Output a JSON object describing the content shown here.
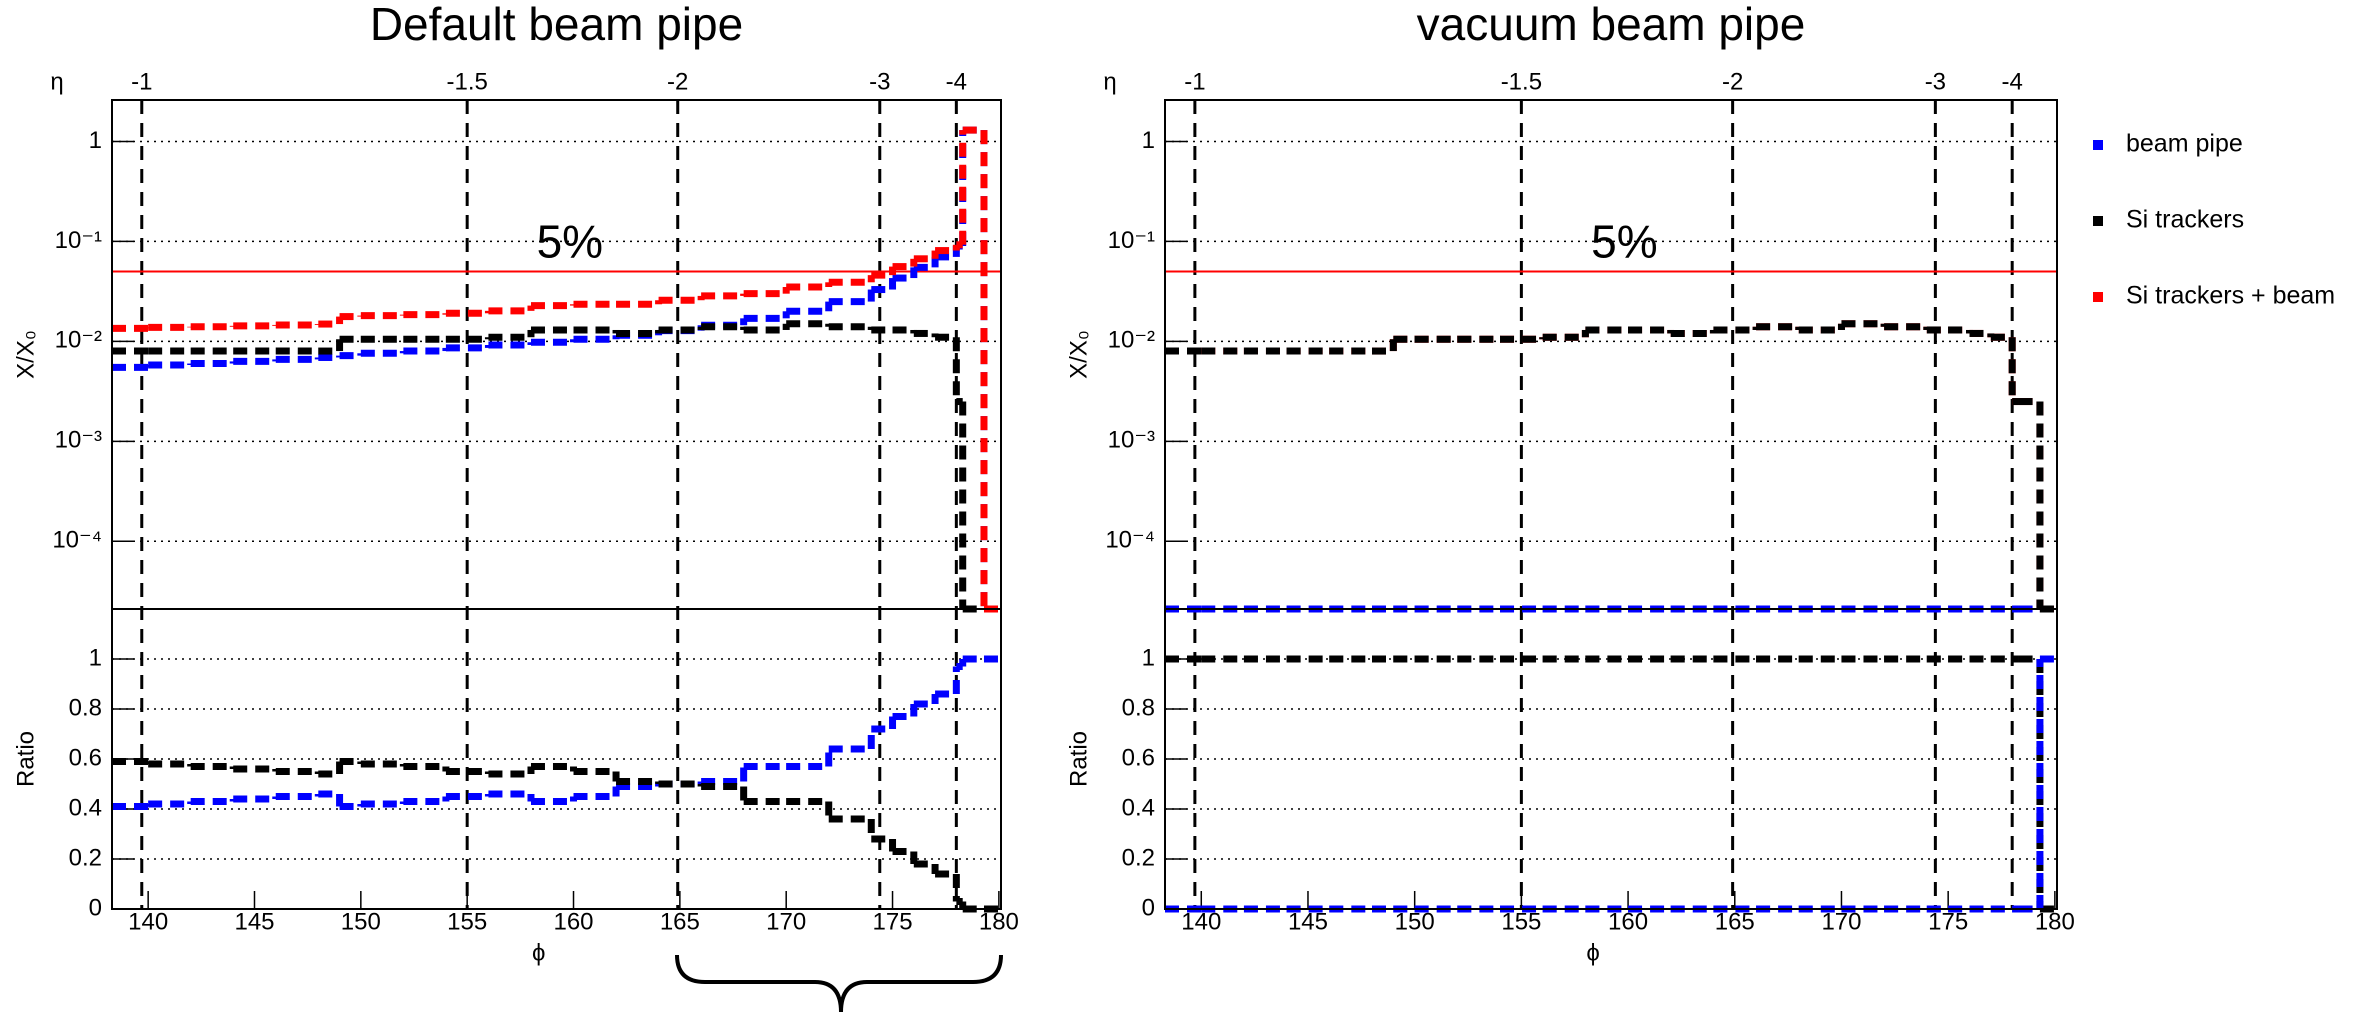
{
  "chart_data": [
    {
      "type": "step",
      "title": "Default beam pipe",
      "legend": "right",
      "eta_label": "η",
      "eta_ticks": [
        {
          "value": 139.7,
          "label": "-1"
        },
        {
          "value": 155,
          "label": "-1.5"
        },
        {
          "value": 164.9,
          "label": "-2"
        },
        {
          "value": 174.4,
          "label": "-3"
        },
        {
          "value": 178,
          "label": "-4"
        }
      ],
      "xlabel": "ϕ",
      "xlim": [
        138.3,
        180.1
      ],
      "xticks": [
        140,
        145,
        150,
        155,
        160,
        165,
        170,
        175,
        180
      ],
      "bins": [
        138.3,
        140,
        142,
        144,
        146,
        148,
        149,
        150,
        152,
        154,
        156,
        158,
        160,
        162,
        164,
        166,
        168,
        170,
        172,
        174,
        175,
        176,
        177,
        178,
        178.3,
        179.3,
        180.1
      ],
      "top": {
        "ylabel": "X/X₀",
        "log": true,
        "ylim": [
          2.1e-05,
          2.6
        ],
        "grid": true,
        "yticks": [
          {
            "value": 0.0001,
            "label": "10⁻⁴"
          },
          {
            "value": 0.001,
            "label": "10⁻³"
          },
          {
            "value": 0.01,
            "label": "10⁻²"
          },
          {
            "value": 0.1,
            "label": "10⁻¹"
          },
          1
        ],
        "reference_line": {
          "value": 0.05,
          "label": "5%",
          "color": "#ff0000"
        },
        "series": [
          {
            "name": "beam pipe",
            "color": "#0000ff",
            "values": [
              0.0055,
              0.0058,
              0.006,
              0.0063,
              0.0066,
              0.0069,
              0.0072,
              0.0076,
              0.008,
              0.0086,
              0.0092,
              0.0098,
              0.0105,
              0.0115,
              0.0128,
              0.0145,
              0.017,
              0.02,
              0.025,
              0.033,
              0.043,
              0.055,
              0.07,
              0.09,
              1.3,
              0
            ]
          },
          {
            "name": "Si trackers",
            "color": "#000000",
            "values": [
              0.008,
              0.008,
              0.008,
              0.008,
              0.008,
              0.008,
              0.0105,
              0.0105,
              0.0105,
              0.0105,
              0.011,
              0.013,
              0.013,
              0.012,
              0.013,
              0.014,
              0.013,
              0.015,
              0.014,
              0.013,
              0.013,
              0.012,
              0.011,
              0.0025,
              0,
              0
            ]
          },
          {
            "name": "Si trackers + beam",
            "color": "#ff0000",
            "values": [
              0.0135,
              0.0138,
              0.014,
              0.0143,
              0.0146,
              0.0149,
              0.0177,
              0.0181,
              0.0185,
              0.0191,
              0.0202,
              0.0228,
              0.0235,
              0.0235,
              0.0258,
              0.0285,
              0.03,
              0.035,
              0.039,
              0.046,
              0.056,
              0.067,
              0.081,
              0.0925,
              1.3,
              0
            ]
          }
        ]
      },
      "ratio": {
        "ylabel": "Ratio",
        "ylim": [
          0,
          1.2
        ],
        "yticks": [
          0,
          0.2,
          0.4,
          0.6,
          0.8,
          1
        ],
        "grid": true,
        "series": [
          {
            "color": "#0000ff",
            "values": [
              0.41,
              0.42,
              0.43,
              0.44,
              0.45,
              0.46,
              0.41,
              0.42,
              0.43,
              0.45,
              0.46,
              0.43,
              0.45,
              0.49,
              0.5,
              0.51,
              0.57,
              0.57,
              0.64,
              0.72,
              0.77,
              0.82,
              0.86,
              0.97,
              1,
              1
            ]
          },
          {
            "color": "#000000",
            "values": [
              0.59,
              0.58,
              0.57,
              0.56,
              0.55,
              0.54,
              0.59,
              0.58,
              0.57,
              0.55,
              0.54,
              0.57,
              0.55,
              0.51,
              0.5,
              0.49,
              0.43,
              0.43,
              0.36,
              0.28,
              0.23,
              0.18,
              0.14,
              0.03,
              0,
              0
            ]
          }
        ]
      }
    },
    {
      "type": "step",
      "title": "vacuum beam pipe",
      "eta_label": "η",
      "eta_ticks": [
        {
          "value": 139.7,
          "label": "-1"
        },
        {
          "value": 155,
          "label": "-1.5"
        },
        {
          "value": 164.9,
          "label": "-2"
        },
        {
          "value": 174.4,
          "label": "-3"
        },
        {
          "value": 178,
          "label": "-4"
        }
      ],
      "xlabel": "ϕ",
      "xlim": [
        138.3,
        180.1
      ],
      "xticks": [
        140,
        145,
        150,
        155,
        160,
        165,
        170,
        175,
        180
      ],
      "bins": [
        138.3,
        140,
        142,
        144,
        146,
        148,
        149,
        150,
        152,
        154,
        156,
        158,
        160,
        162,
        164,
        166,
        168,
        170,
        172,
        174,
        175,
        176,
        177,
        178,
        178.3,
        179.3,
        180.1
      ],
      "top": {
        "ylabel": "X/X₀",
        "log": true,
        "ylim": [
          2.1e-05,
          2.6
        ],
        "grid": true,
        "yticks": [
          {
            "value": 0.0001,
            "label": "10⁻⁴"
          },
          {
            "value": 0.001,
            "label": "10⁻³"
          },
          {
            "value": 0.01,
            "label": "10⁻²"
          },
          {
            "value": 0.1,
            "label": "10⁻¹"
          },
          1
        ],
        "reference_line": {
          "value": 0.05,
          "label": "5%",
          "color": "#ff0000"
        },
        "series": [
          {
            "color": "#0000ff",
            "values": [
              0,
              0,
              0,
              0,
              0,
              0,
              0,
              0,
              0,
              0,
              0,
              0,
              0,
              0,
              0,
              0,
              0,
              0,
              0,
              0,
              0,
              0,
              0,
              0,
              0,
              0
            ]
          },
          {
            "color": "#ff0000",
            "values": [
              0.008,
              0.008,
              0.008,
              0.008,
              0.008,
              0.008,
              0.0105,
              0.0105,
              0.0105,
              0.0105,
              0.011,
              0.013,
              0.013,
              0.012,
              0.013,
              0.014,
              0.013,
              0.015,
              0.014,
              0.013,
              0.013,
              0.012,
              0.011,
              0.0025,
              0.0025,
              0
            ]
          },
          {
            "color": "#000000",
            "values": [
              0.008,
              0.008,
              0.008,
              0.008,
              0.008,
              0.008,
              0.0105,
              0.0105,
              0.0105,
              0.0105,
              0.011,
              0.013,
              0.013,
              0.012,
              0.013,
              0.014,
              0.013,
              0.015,
              0.014,
              0.013,
              0.013,
              0.012,
              0.011,
              0.0025,
              0.0025,
              0
            ]
          }
        ]
      },
      "ratio": {
        "ylabel": "Ratio",
        "ylim": [
          0,
          1.2
        ],
        "yticks": [
          0,
          0.2,
          0.4,
          0.6,
          0.8,
          1
        ],
        "grid": true,
        "series": [
          {
            "color": "#000000",
            "values": [
              1,
              1,
              1,
              1,
              1,
              1,
              1,
              1,
              1,
              1,
              1,
              1,
              1,
              1,
              1,
              1,
              1,
              1,
              1,
              1,
              1,
              1,
              1,
              1,
              1,
              0
            ]
          },
          {
            "color": "#0000ff",
            "values": [
              0,
              0,
              0,
              0,
              0,
              0,
              0,
              0,
              0,
              0,
              0,
              0,
              0,
              0,
              0,
              0,
              0,
              0,
              0,
              0,
              0,
              0,
              0,
              0,
              0,
              1
            ]
          }
        ]
      }
    }
  ]
}
